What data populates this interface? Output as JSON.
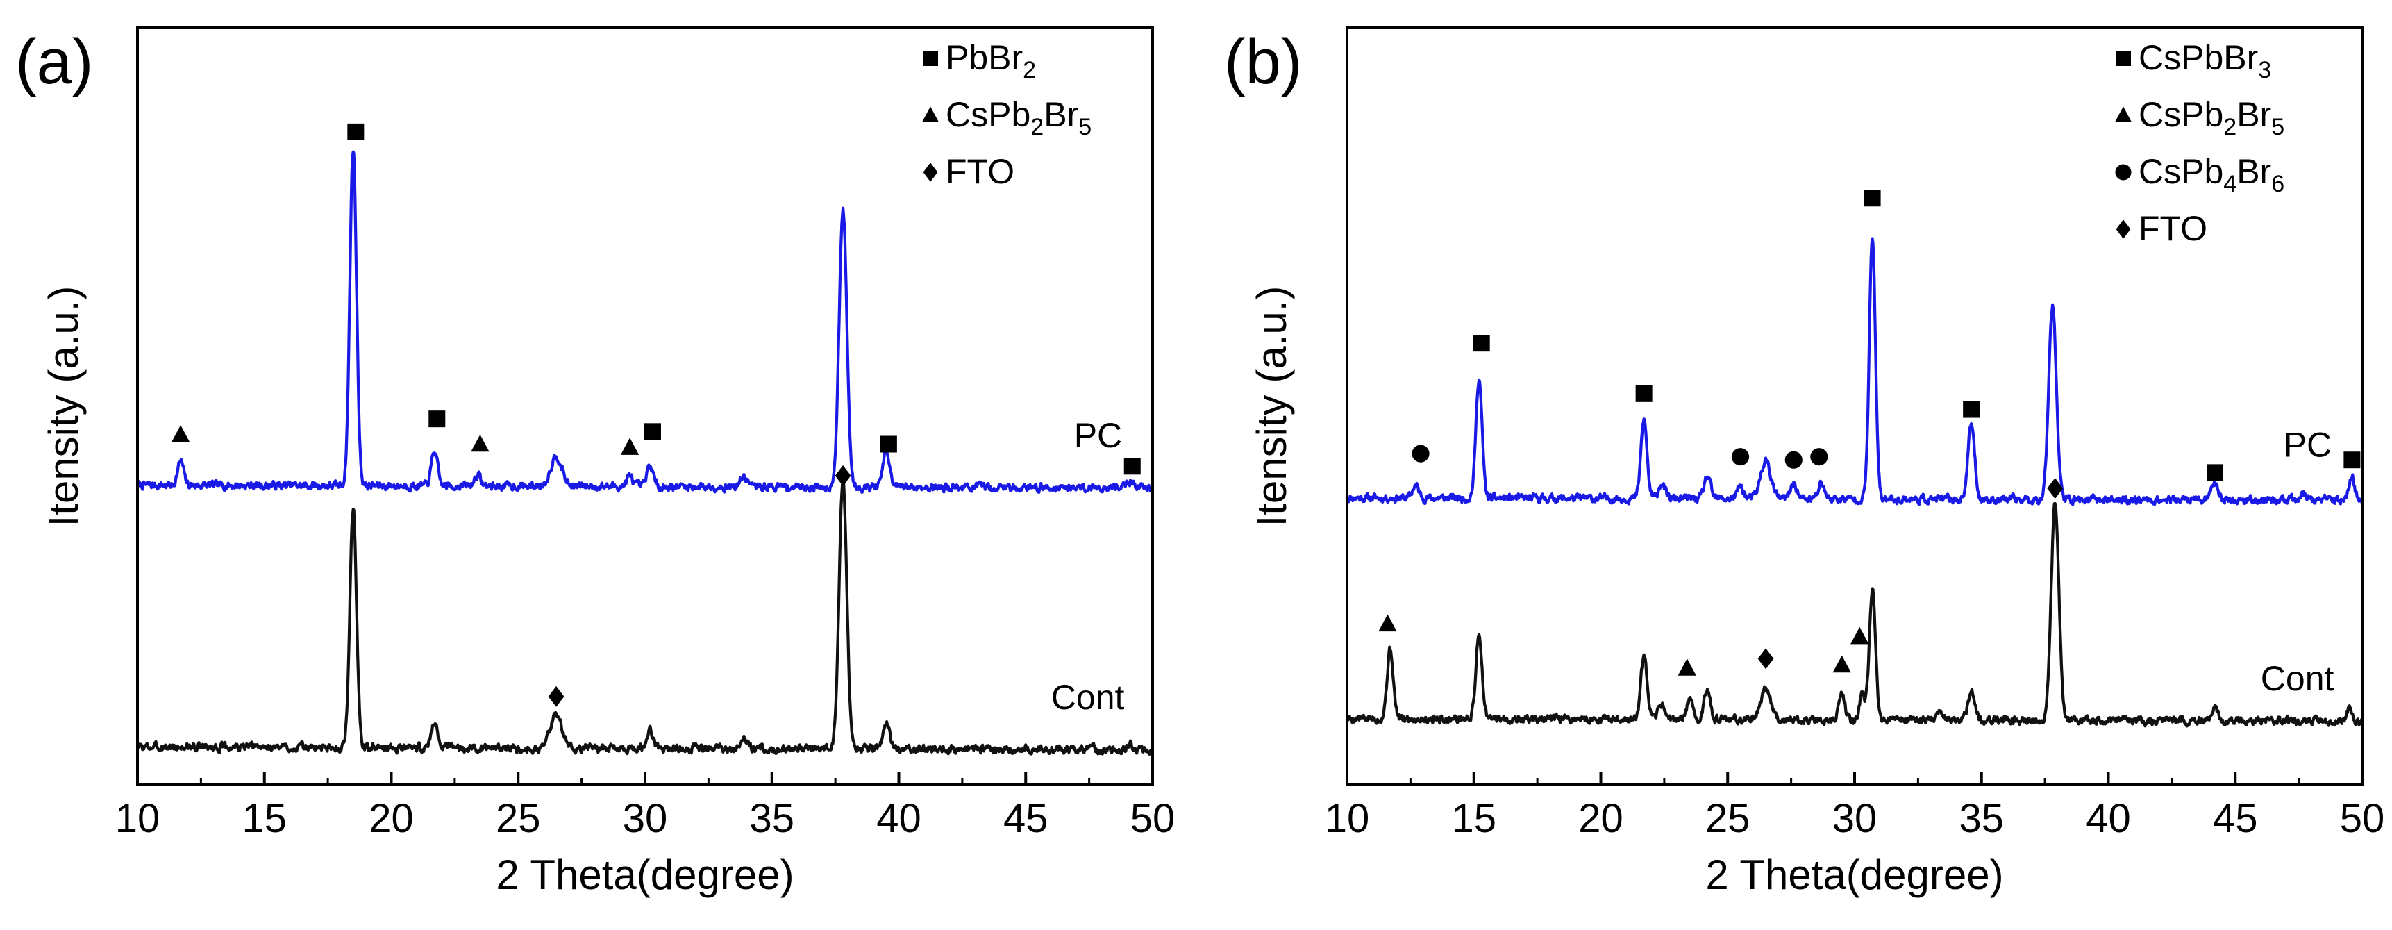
{
  "chart_data": [
    {
      "panel": "(a)",
      "type": "line",
      "title": "",
      "xlabel": "2 Theta(degree)",
      "ylabel": "Itensity (a.u.)",
      "xlim": [
        10,
        50
      ],
      "ylim": [
        0,
        12
      ],
      "xticks": [
        10,
        15,
        20,
        25,
        30,
        35,
        40,
        45,
        50
      ],
      "yticks_visible": false,
      "legend": {
        "position": "top-right",
        "entries": [
          {
            "marker": "square",
            "text": "PbBr",
            "sub1": "2",
            "mid": "",
            "sub2": ""
          },
          {
            "marker": "triangle",
            "text": "CsPb",
            "sub1": "2",
            "mid": "Br",
            "sub2": "5"
          },
          {
            "marker": "diamond",
            "text": "FTO",
            "sub1": "",
            "mid": "",
            "sub2": ""
          }
        ]
      },
      "series": [
        {
          "name": "PC",
          "color": "#1a1ae6",
          "baseline": 4.75,
          "noise": 0.05,
          "noise_seed": 7,
          "peaks": [
            [
              11.7,
              0.38,
              0.12
            ],
            [
              18.5,
              5.35,
              0.13
            ],
            [
              21.7,
              0.55,
              0.12
            ],
            [
              23.4,
              0.18,
              0.12
            ],
            [
              26.5,
              0.48,
              0.22
            ],
            [
              29.4,
              0.16,
              0.12
            ],
            [
              30.2,
              0.33,
              0.12
            ],
            [
              33.9,
              0.15,
              0.15
            ],
            [
              37.8,
              4.4,
              0.15
            ],
            [
              39.5,
              0.55,
              0.13
            ],
            [
              49.1,
              0.12,
              0.12
            ]
          ]
        },
        {
          "name": "Cont",
          "color": "#111111",
          "baseline": 0.6,
          "noise": 0.05,
          "noise_seed": 3,
          "peaks": [
            [
              18.5,
              3.8,
              0.13
            ],
            [
              21.7,
              0.43,
              0.12
            ],
            [
              26.5,
              0.55,
              0.22
            ],
            [
              30.2,
              0.28,
              0.12
            ],
            [
              33.9,
              0.14,
              0.15
            ],
            [
              37.8,
              4.3,
              0.15
            ],
            [
              39.5,
              0.42,
              0.13
            ],
            [
              49.1,
              0.1,
              0.12
            ]
          ]
        }
      ],
      "trace_labels": [
        {
          "text": "PC",
          "x": 46.9,
          "y": 5.35
        },
        {
          "text": "Cont",
          "x": 46.0,
          "y": 1.2
        }
      ],
      "annotations": [
        {
          "marker": "triangle",
          "x": 11.7,
          "y": 5.55
        },
        {
          "marker": "square",
          "x": 18.6,
          "y": 10.35
        },
        {
          "marker": "square",
          "x": 21.8,
          "y": 5.8
        },
        {
          "marker": "triangle",
          "x": 23.5,
          "y": 5.4
        },
        {
          "marker": "triangle",
          "x": 29.4,
          "y": 5.35
        },
        {
          "marker": "square",
          "x": 30.3,
          "y": 5.6
        },
        {
          "marker": "square",
          "x": 39.6,
          "y": 5.4
        },
        {
          "marker": "square",
          "x": 49.2,
          "y": 5.05
        },
        {
          "marker": "diamond",
          "x": 37.8,
          "y": 4.9
        },
        {
          "marker": "diamond",
          "x": 26.5,
          "y": 1.4
        }
      ]
    },
    {
      "panel": "(b)",
      "type": "line",
      "title": "",
      "xlabel": "2 Theta(degree)",
      "ylabel": "Itensity (a.u.)",
      "xlim": [
        10,
        50
      ],
      "ylim": [
        0,
        12
      ],
      "xticks": [
        10,
        15,
        20,
        25,
        30,
        35,
        40,
        45,
        50
      ],
      "yticks_visible": false,
      "legend": {
        "position": "top-right",
        "entries": [
          {
            "marker": "square",
            "text": "CsPbBr",
            "sub1": "3",
            "mid": "",
            "sub2": ""
          },
          {
            "marker": "triangle",
            "text": "CsPb",
            "sub1": "2",
            "mid": "Br",
            "sub2": "5"
          },
          {
            "marker": "circle",
            "text": "CsPb",
            "sub1": "4",
            "mid": "Br",
            "sub2": "6"
          },
          {
            "marker": "diamond",
            "text": "FTO",
            "sub1": "",
            "mid": "",
            "sub2": ""
          }
        ]
      },
      "series": [
        {
          "name": "PC",
          "color": "#1a1ae6",
          "baseline": 4.55,
          "noise": 0.05,
          "noise_seed": 11,
          "peaks": [
            [
              12.7,
              0.2,
              0.12
            ],
            [
              15.2,
              1.9,
              0.12
            ],
            [
              21.7,
              1.25,
              0.12
            ],
            [
              22.4,
              0.25,
              0.12
            ],
            [
              24.2,
              0.35,
              0.12
            ],
            [
              25.5,
              0.2,
              0.12
            ],
            [
              26.5,
              0.6,
              0.2
            ],
            [
              27.6,
              0.25,
              0.12
            ],
            [
              28.7,
              0.25,
              0.12
            ],
            [
              30.7,
              4.15,
              0.12
            ],
            [
              34.6,
              1.2,
              0.13
            ],
            [
              37.8,
              3.1,
              0.15
            ],
            [
              44.2,
              0.3,
              0.12
            ],
            [
              47.7,
              0.1,
              0.12
            ],
            [
              49.6,
              0.4,
              0.1
            ]
          ]
        },
        {
          "name": "Cont",
          "color": "#111111",
          "baseline": 1.05,
          "noise": 0.05,
          "noise_seed": 5,
          "peaks": [
            [
              11.7,
              1.1,
              0.12
            ],
            [
              15.2,
              1.35,
              0.12
            ],
            [
              21.7,
              1.0,
              0.12
            ],
            [
              22.4,
              0.25,
              0.12
            ],
            [
              23.5,
              0.3,
              0.12
            ],
            [
              24.2,
              0.5,
              0.12
            ],
            [
              26.5,
              0.5,
              0.2
            ],
            [
              29.5,
              0.4,
              0.12
            ],
            [
              30.3,
              0.4,
              0.1
            ],
            [
              30.7,
              2.05,
              0.12
            ],
            [
              33.4,
              0.15,
              0.12
            ],
            [
              34.6,
              0.45,
              0.13
            ],
            [
              37.9,
              3.45,
              0.15
            ],
            [
              44.2,
              0.2,
              0.12
            ],
            [
              49.5,
              0.2,
              0.1
            ]
          ]
        }
      ],
      "trace_labels": [
        {
          "text": "PC",
          "x": 46.9,
          "y": 5.2
        },
        {
          "text": "Cont",
          "x": 46.0,
          "y": 1.5
        }
      ],
      "annotations": [
        {
          "marker": "circle",
          "x": 12.9,
          "y": 5.25
        },
        {
          "marker": "square",
          "x": 15.3,
          "y": 7.0
        },
        {
          "marker": "square",
          "x": 21.7,
          "y": 6.2
        },
        {
          "marker": "circle",
          "x": 25.5,
          "y": 5.2
        },
        {
          "marker": "circle",
          "x": 27.6,
          "y": 5.15
        },
        {
          "marker": "circle",
          "x": 28.6,
          "y": 5.2
        },
        {
          "marker": "square",
          "x": 30.7,
          "y": 9.3
        },
        {
          "marker": "square",
          "x": 34.6,
          "y": 5.95
        },
        {
          "marker": "square",
          "x": 44.2,
          "y": 4.95
        },
        {
          "marker": "square",
          "x": 49.6,
          "y": 5.15
        },
        {
          "marker": "diamond",
          "x": 37.9,
          "y": 4.7
        },
        {
          "marker": "triangle",
          "x": 11.6,
          "y": 2.55
        },
        {
          "marker": "triangle",
          "x": 23.4,
          "y": 1.85
        },
        {
          "marker": "diamond",
          "x": 26.5,
          "y": 2.0
        },
        {
          "marker": "triangle",
          "x": 29.5,
          "y": 1.9
        },
        {
          "marker": "triangle",
          "x": 30.2,
          "y": 2.35
        }
      ]
    }
  ]
}
